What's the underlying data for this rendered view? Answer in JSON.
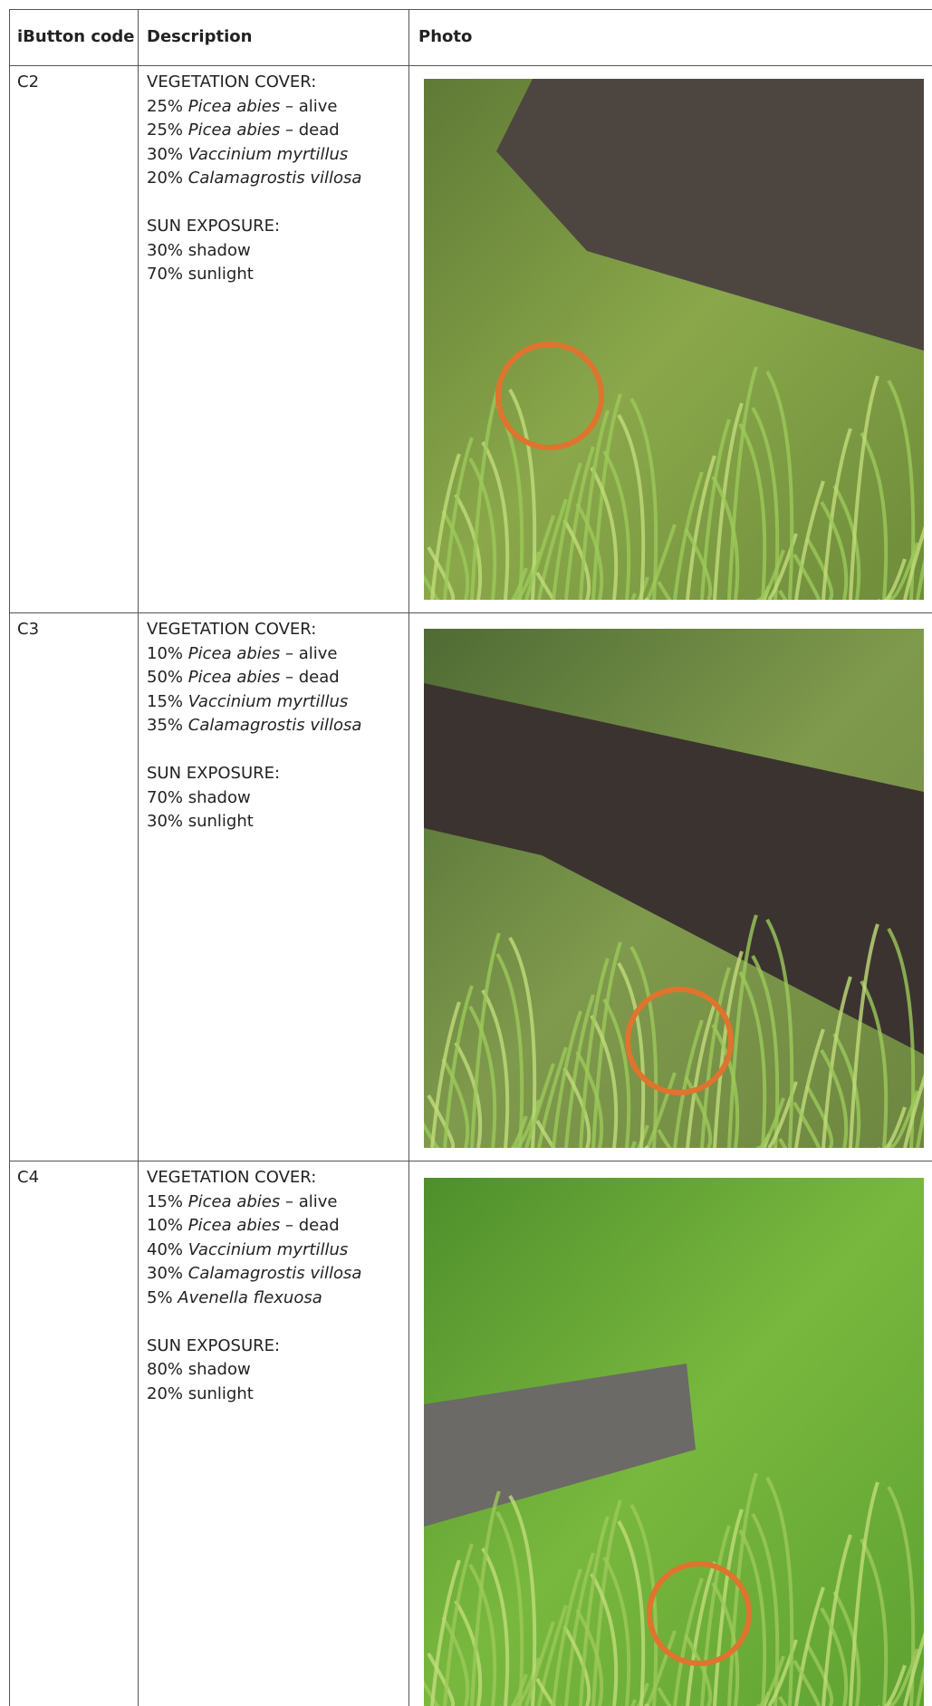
{
  "table": {
    "headers": [
      "iButton code",
      "Description",
      "Photo"
    ],
    "rows": [
      {
        "code": "C2",
        "vegetation_heading": "VEGETATION COVER:",
        "vegetation": [
          {
            "share": "25%",
            "species": "Picea abies",
            "note": "– alive"
          },
          {
            "share": "25%",
            "species": "Picea abies",
            "note": "– dead"
          },
          {
            "share": "30%",
            "species": "Vaccinium myrtillus"
          },
          {
            "share": "20%",
            "species": "Calamagrostis villosa"
          }
        ],
        "sun_heading": "SUN EXPOSURE:",
        "sun": [
          "30% shadow",
          "70% sunlight"
        ]
      },
      {
        "code": "C3",
        "vegetation_heading": "VEGETATION COVER:",
        "vegetation": [
          {
            "share": "10%",
            "species": "Picea abies",
            "note": "– alive"
          },
          {
            "share": "50%",
            "species": "Picea abies",
            "note": "– dead"
          },
          {
            "share": "15%",
            "species": "Vaccinium myrtillus"
          },
          {
            "share": "35%",
            "species": "Calamagrostis villosa"
          }
        ],
        "sun_heading": "SUN EXPOSURE:",
        "sun": [
          "70% shadow",
          "30% sunlight"
        ]
      },
      {
        "code": "C4",
        "vegetation_heading": "VEGETATION COVER:",
        "vegetation": [
          {
            "share": "15%",
            "species": "Picea abies",
            "note": "– alive"
          },
          {
            "share": "10%",
            "species": "Picea abies",
            "note": "– dead"
          },
          {
            "share": "40%",
            "species": "Vaccinium myrtillus"
          },
          {
            "share": "30%",
            "species": "Calamagrostis villosa"
          },
          {
            "share": "5%",
            "species": "Avenella flexuosa"
          }
        ],
        "sun_heading": "SUN EXPOSURE:",
        "sun": [
          "80% shadow",
          "20% sunlight"
        ]
      }
    ]
  }
}
